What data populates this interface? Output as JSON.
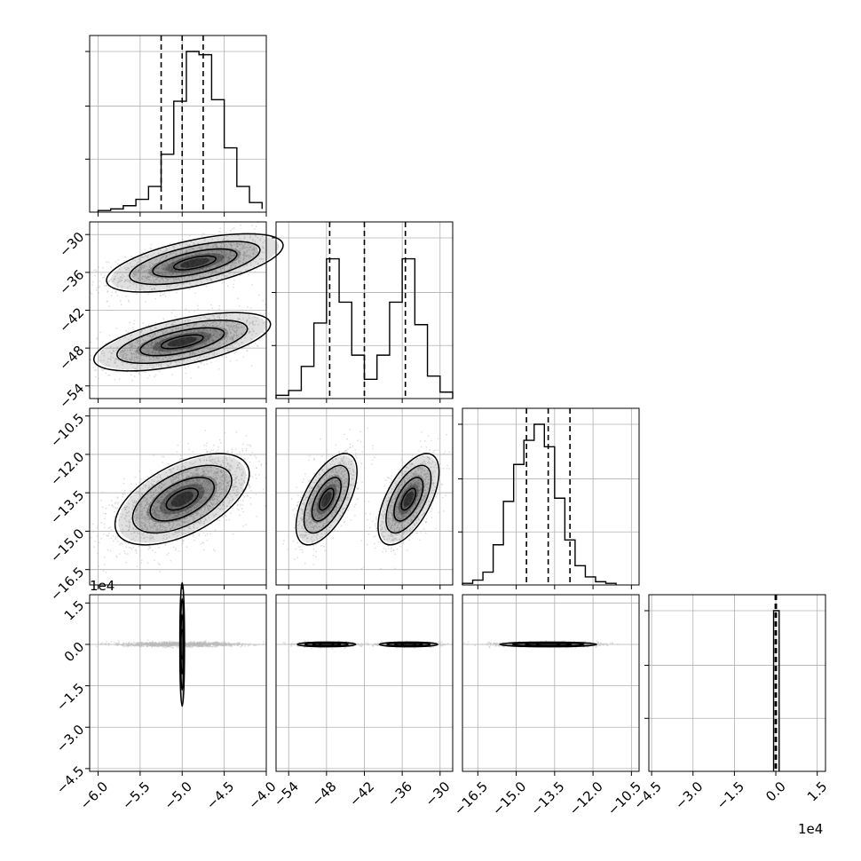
{
  "chart_data": {
    "type": "corner",
    "n_params": 4,
    "exponent_labels": {
      "row3_y": "1e4",
      "col3_x": "1e4"
    },
    "axes": [
      {
        "ticks": [
          -6.0,
          -5.5,
          -5.0,
          -4.5,
          -4.0
        ],
        "tick_labels": [
          "−6.0",
          "−5.5",
          "−5.0",
          "−4.5",
          "−4.0"
        ],
        "range": [
          -6.1,
          -4.0
        ]
      },
      {
        "ticks": [
          -54,
          -48,
          -42,
          -36,
          -30
        ],
        "tick_labels": [
          "−54",
          "−48",
          "−42",
          "−36",
          "−30"
        ],
        "range": [
          -56,
          -28
        ]
      },
      {
        "ticks": [
          -16.5,
          -15.0,
          -13.5,
          -12.0,
          -10.5
        ],
        "tick_labels": [
          "−16.5",
          "−15.0",
          "−13.5",
          "−12.0",
          "−10.5"
        ],
        "range": [
          -17.1,
          -10.2
        ]
      },
      {
        "ticks": [
          -4.5,
          -3.0,
          -1.5,
          0.0,
          1.5
        ],
        "tick_labels": [
          "−4.5",
          "−3.0",
          "−1.5",
          "0.0",
          "1.5"
        ],
        "range": [
          -4.6,
          1.8
        ]
      }
    ],
    "histograms": [
      {
        "bins": [
          -6.0,
          -5.85,
          -5.7,
          -5.55,
          -5.4,
          -5.25,
          -5.1,
          -4.95,
          -4.8,
          -4.65,
          -4.5,
          -4.35,
          -4.2,
          -4.05
        ],
        "counts": [
          0.01,
          0.02,
          0.04,
          0.08,
          0.16,
          0.36,
          0.69,
          1.0,
          0.98,
          0.7,
          0.4,
          0.16,
          0.06,
          0.02
        ],
        "quantiles": [
          -5.25,
          -5.0,
          -4.75
        ]
      },
      {
        "bins": [
          -56,
          -54,
          -52,
          -50,
          -48,
          -46,
          -44,
          -42,
          -40,
          -38,
          -36,
          -34,
          -32,
          -30,
          -28
        ],
        "counts": [
          0.02,
          0.05,
          0.2,
          0.47,
          0.87,
          0.6,
          0.27,
          0.12,
          0.27,
          0.6,
          0.87,
          0.46,
          0.14,
          0.04
        ],
        "quantiles": [
          -47.5,
          -42.0,
          -35.5
        ]
      },
      {
        "bins": [
          -17.1,
          -16.7,
          -16.3,
          -15.9,
          -15.5,
          -15.1,
          -14.7,
          -14.3,
          -13.9,
          -13.5,
          -13.1,
          -12.7,
          -12.3,
          -11.9,
          -11.5,
          -11.1
        ],
        "counts": [
          0.01,
          0.03,
          0.08,
          0.25,
          0.52,
          0.75,
          0.9,
          1.0,
          0.86,
          0.54,
          0.28,
          0.12,
          0.05,
          0.02,
          0.01
        ],
        "quantiles": [
          -14.6,
          -13.75,
          -12.9
        ]
      },
      {
        "bins": [
          -0.08,
          0.12
        ],
        "counts": [
          1.0
        ],
        "quantiles": [
          -0.02,
          0.0,
          0.02
        ]
      }
    ],
    "blobs": [
      {
        "row": 1,
        "col": 0,
        "modes": [
          {
            "cx": -4.85,
            "cy": -34.5,
            "sx": 0.5,
            "sy": 2.2,
            "rho": 0.6,
            "n": 1600
          },
          {
            "cx": -5.0,
            "cy": -47.0,
            "sx": 0.5,
            "sy": 2.2,
            "rho": 0.6,
            "n": 1600
          }
        ]
      },
      {
        "row": 2,
        "col": 0,
        "modes": [
          {
            "cx": -5.0,
            "cy": -13.75,
            "sx": 0.38,
            "sy": 0.85,
            "rho": 0.55,
            "n": 2400
          }
        ]
      },
      {
        "row": 2,
        "col": 1,
        "modes": [
          {
            "cx": -48.0,
            "cy": -13.75,
            "sx": 2.3,
            "sy": 0.85,
            "rho": 0.6,
            "n": 1200
          },
          {
            "cx": -35.0,
            "cy": -13.75,
            "sx": 2.3,
            "sy": 0.85,
            "rho": 0.6,
            "n": 1200
          }
        ]
      },
      {
        "row": 3,
        "col": 0,
        "modes": [
          {
            "cx": -5.0,
            "cy": 0.0,
            "sx": 0.35,
            "sy": 0.04,
            "rho": 0.0,
            "n": 1400
          }
        ]
      },
      {
        "row": 3,
        "col": 1,
        "modes": [
          {
            "cx": -48.0,
            "cy": 0.0,
            "sx": 2.2,
            "sy": 0.04,
            "rho": 0.0,
            "n": 700
          },
          {
            "cx": -35.0,
            "cy": 0.0,
            "sx": 2.2,
            "sy": 0.04,
            "rho": 0.0,
            "n": 700
          }
        ]
      },
      {
        "row": 3,
        "col": 2,
        "modes": [
          {
            "cx": -13.75,
            "cy": 0.0,
            "sx": 0.9,
            "sy": 0.04,
            "rho": 0.0,
            "n": 1400
          }
        ]
      }
    ],
    "grid": true,
    "colors": {
      "line": "#000000",
      "grid": "#b0b0b0",
      "points": "#bbbbbb",
      "density": "#000000"
    }
  }
}
